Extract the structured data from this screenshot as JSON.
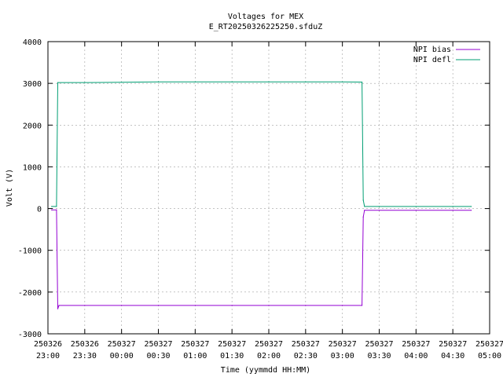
{
  "chart_data": {
    "type": "line",
    "title": "Voltages for MEX",
    "subtitle": "E_RT20250326225250.sfduZ",
    "xlabel": "Time (yymmdd HH:MM)",
    "ylabel": "Volt (V)",
    "xlim": [
      "2025-03-26 23:00",
      "2025-03-27 05:00"
    ],
    "ylim": [
      -3000,
      4000
    ],
    "grid": true,
    "legend_position": "top-right",
    "x_ticks": [
      {
        "date": "250326",
        "time": "23:00"
      },
      {
        "date": "250326",
        "time": "23:30"
      },
      {
        "date": "250327",
        "time": "00:00"
      },
      {
        "date": "250327",
        "time": "00:30"
      },
      {
        "date": "250327",
        "time": "01:00"
      },
      {
        "date": "250327",
        "time": "01:30"
      },
      {
        "date": "250327",
        "time": "02:00"
      },
      {
        "date": "250327",
        "time": "02:30"
      },
      {
        "date": "250327",
        "time": "03:00"
      },
      {
        "date": "250327",
        "time": "03:30"
      },
      {
        "date": "250327",
        "time": "04:00"
      },
      {
        "date": "250327",
        "time": "04:30"
      },
      {
        "date": "250327",
        "time": "05:00"
      }
    ],
    "y_ticks": [
      "-3000",
      "-2000",
      "-1000",
      "0",
      "1000",
      "2000",
      "3000",
      "4000"
    ],
    "series": [
      {
        "name": "NPI bias",
        "color": "#9400d3",
        "points": [
          {
            "x": "2025-03-26 23:03",
            "y": -30
          },
          {
            "x": "2025-03-26 23:07",
            "y": -30
          },
          {
            "x": "2025-03-26 23:08",
            "y": -2400
          },
          {
            "x": "2025-03-26 23:09",
            "y": -2320
          },
          {
            "x": "2025-03-26 23:30",
            "y": -2320
          },
          {
            "x": "2025-03-27 00:00",
            "y": -2320
          },
          {
            "x": "2025-03-27 00:30",
            "y": -2320
          },
          {
            "x": "2025-03-27 01:00",
            "y": -2320
          },
          {
            "x": "2025-03-27 01:30",
            "y": -2320
          },
          {
            "x": "2025-03-27 02:00",
            "y": -2320
          },
          {
            "x": "2025-03-27 02:30",
            "y": -2320
          },
          {
            "x": "2025-03-27 03:00",
            "y": -2320
          },
          {
            "x": "2025-03-27 03:16",
            "y": -2320
          },
          {
            "x": "2025-03-27 03:17",
            "y": -200
          },
          {
            "x": "2025-03-27 03:18",
            "y": -40
          },
          {
            "x": "2025-03-27 03:30",
            "y": -40
          },
          {
            "x": "2025-03-27 04:00",
            "y": -40
          },
          {
            "x": "2025-03-27 04:30",
            "y": -40
          },
          {
            "x": "2025-03-27 04:45",
            "y": -40
          }
        ]
      },
      {
        "name": "NPI defl",
        "color": "#009e73",
        "points": [
          {
            "x": "2025-03-26 23:03",
            "y": 50
          },
          {
            "x": "2025-03-26 23:07",
            "y": 50
          },
          {
            "x": "2025-03-26 23:08",
            "y": 3020
          },
          {
            "x": "2025-03-26 23:30",
            "y": 3020
          },
          {
            "x": "2025-03-27 00:00",
            "y": 3025
          },
          {
            "x": "2025-03-27 00:30",
            "y": 3035
          },
          {
            "x": "2025-03-27 01:00",
            "y": 3035
          },
          {
            "x": "2025-03-27 01:30",
            "y": 3035
          },
          {
            "x": "2025-03-27 02:00",
            "y": 3035
          },
          {
            "x": "2025-03-27 02:30",
            "y": 3035
          },
          {
            "x": "2025-03-27 03:00",
            "y": 3035
          },
          {
            "x": "2025-03-27 03:16",
            "y": 3030
          },
          {
            "x": "2025-03-27 03:17",
            "y": 200
          },
          {
            "x": "2025-03-27 03:18",
            "y": 50
          },
          {
            "x": "2025-03-27 03:30",
            "y": 50
          },
          {
            "x": "2025-03-27 04:00",
            "y": 50
          },
          {
            "x": "2025-03-27 04:30",
            "y": 50
          },
          {
            "x": "2025-03-27 04:45",
            "y": 50
          }
        ]
      }
    ]
  }
}
